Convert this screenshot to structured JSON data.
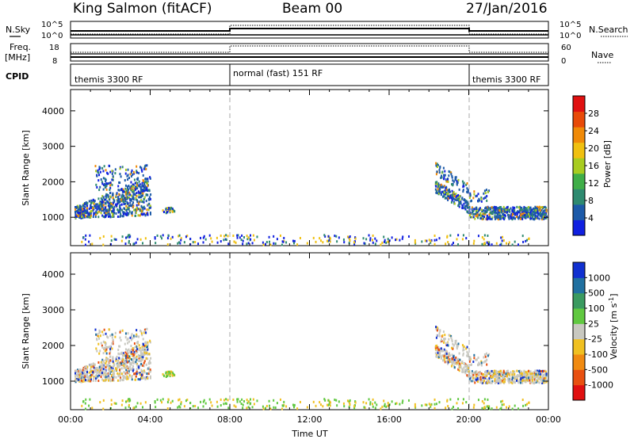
{
  "header": {
    "station": "King Salmon (fitACF)",
    "beam": "Beam 00",
    "date": "27/Jan/2016"
  },
  "housekeeping": {
    "nsky_label": "N.Sky",
    "nsky_ticks": [
      "10^5",
      "10^0"
    ],
    "nsearch_label": "N.Search",
    "nsearch_ticks": [
      "10^5",
      "10^0"
    ],
    "freq_label_1": "Freq.",
    "freq_label_2": "[MHz]",
    "freq_ticks": [
      "18",
      "8"
    ],
    "nave_label": "Nave",
    "nave_ticks": [
      "60",
      "0"
    ],
    "cpid_label": "CPID",
    "cpid_segments": [
      {
        "label": "themis 3300 RF",
        "start_hour": 0,
        "end_hour": 8
      },
      {
        "label": "normal (fast) 151 RF",
        "start_hour": 8,
        "end_hour": 20
      },
      {
        "label": "themis 3300 RF",
        "start_hour": 20,
        "end_hour": 24
      }
    ]
  },
  "chart_data": [
    {
      "type": "heatmap",
      "name": "power",
      "ylabel": "Slant Range [km]",
      "xlabel": "",
      "x_ticks": [],
      "y_ticks": [
        1000,
        2000,
        3000,
        4000
      ],
      "ylim": [
        200,
        4600
      ],
      "xlim_hours": [
        0,
        24
      ],
      "colorbar": {
        "label": "Power [dB]",
        "ticks": [
          4,
          8,
          12,
          16,
          20,
          24,
          28
        ],
        "range": [
          0,
          32
        ],
        "colors": [
          "#1020e0",
          "#1c5aa8",
          "#2e8a70",
          "#3fae48",
          "#a8cc20",
          "#f0c010",
          "#f08a08",
          "#e84a08",
          "#e01010"
        ]
      }
    },
    {
      "type": "heatmap",
      "name": "velocity",
      "ylabel": "Slant Range [km]",
      "xlabel": "Time UT",
      "x_ticks": [
        "00:00",
        "04:00",
        "08:00",
        "12:00",
        "16:00",
        "20:00",
        "00:00"
      ],
      "x_tick_hours": [
        0,
        4,
        8,
        12,
        16,
        20,
        24
      ],
      "y_ticks": [
        1000,
        2000,
        3000,
        4000
      ],
      "ylim": [
        200,
        4600
      ],
      "xlim_hours": [
        0,
        24
      ],
      "colorbar": {
        "label": "Velocity [m s^-1]",
        "ticks": [
          "1000",
          "500",
          "100",
          "25",
          "-25",
          "-100",
          "-500",
          "-1000"
        ],
        "colors": [
          "#1030d0",
          "#2070a0",
          "#3a9a60",
          "#60c840",
          "#c8c8c0",
          "#f0c020",
          "#f08a10",
          "#e85010",
          "#e01010"
        ]
      }
    }
  ]
}
